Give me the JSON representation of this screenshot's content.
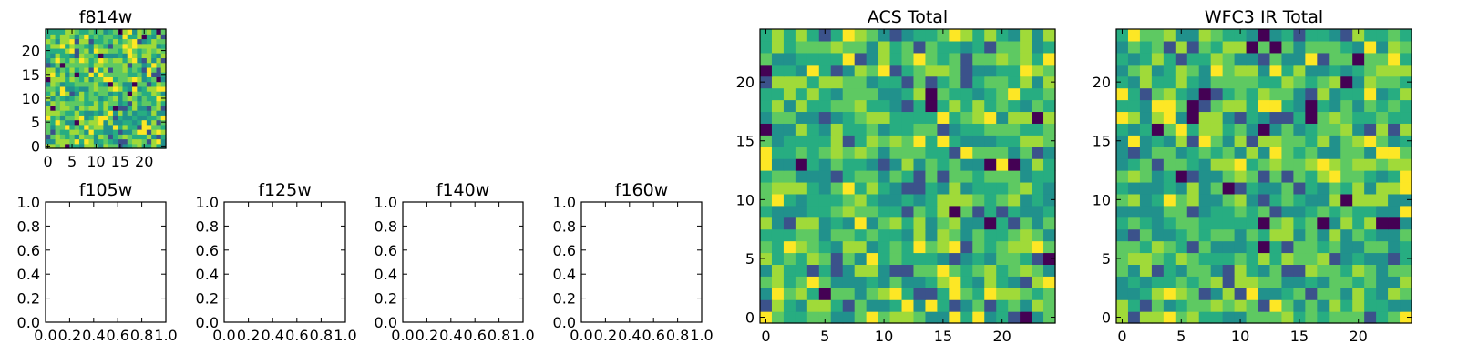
{
  "chart_data": [
    {
      "type": "heatmap",
      "id": "f814w",
      "title": "f814w",
      "grid_size": 25,
      "colormap": "viridis",
      "x_ticks": [
        "0",
        "5",
        "10",
        "15",
        "20"
      ],
      "y_ticks": [
        "0",
        "5",
        "10",
        "15",
        "20"
      ],
      "empty": false
    },
    {
      "type": "heatmap",
      "id": "f105w",
      "title": "f105w",
      "xlim": [
        0.0,
        1.0
      ],
      "ylim": [
        0.0,
        1.0
      ],
      "x_ticks": [
        "0.0",
        "0.2",
        "0.4",
        "0.6",
        "0.8",
        "1.0"
      ],
      "y_ticks": [
        "0.0",
        "0.2",
        "0.4",
        "0.6",
        "0.8",
        "1.0"
      ],
      "empty": true
    },
    {
      "type": "heatmap",
      "id": "f125w",
      "title": "f125w",
      "xlim": [
        0.0,
        1.0
      ],
      "ylim": [
        0.0,
        1.0
      ],
      "x_ticks": [
        "0.0",
        "0.2",
        "0.4",
        "0.6",
        "0.8",
        "1.0"
      ],
      "y_ticks": [
        "0.0",
        "0.2",
        "0.4",
        "0.6",
        "0.8",
        "1.0"
      ],
      "empty": true
    },
    {
      "type": "heatmap",
      "id": "f140w",
      "title": "f140w",
      "xlim": [
        0.0,
        1.0
      ],
      "ylim": [
        0.0,
        1.0
      ],
      "x_ticks": [
        "0.0",
        "0.2",
        "0.4",
        "0.6",
        "0.8",
        "1.0"
      ],
      "y_ticks": [
        "0.0",
        "0.2",
        "0.4",
        "0.6",
        "0.8",
        "1.0"
      ],
      "empty": true
    },
    {
      "type": "heatmap",
      "id": "f160w",
      "title": "f160w",
      "xlim": [
        0.0,
        1.0
      ],
      "ylim": [
        0.0,
        1.0
      ],
      "x_ticks": [
        "0.0",
        "0.2",
        "0.4",
        "0.6",
        "0.8",
        "1.0"
      ],
      "y_ticks": [
        "0.0",
        "0.2",
        "0.4",
        "0.6",
        "0.8",
        "1.0"
      ],
      "empty": true
    },
    {
      "type": "heatmap",
      "id": "acs-total",
      "title": "ACS Total",
      "grid_size": 25,
      "colormap": "viridis",
      "x_ticks": [
        "0",
        "5",
        "10",
        "15",
        "20"
      ],
      "y_ticks": [
        "0",
        "5",
        "10",
        "15",
        "20"
      ],
      "empty": false
    },
    {
      "type": "heatmap",
      "id": "wfc3-ir-total",
      "title": "WFC3 IR Total",
      "grid_size": 25,
      "colormap": "viridis",
      "x_ticks": [
        "0",
        "5",
        "10",
        "15",
        "20"
      ],
      "y_ticks": [
        "0",
        "5",
        "10",
        "15",
        "20"
      ],
      "empty": false
    }
  ]
}
